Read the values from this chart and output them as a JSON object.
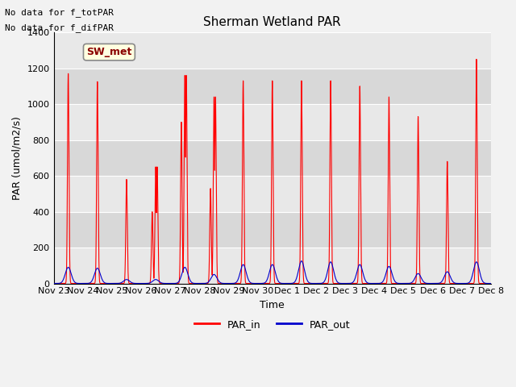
{
  "title": "Sherman Wetland PAR",
  "ylabel": "PAR (umol/m2/s)",
  "xlabel": "Time",
  "annotation_lines": [
    "No data for f_totPAR",
    "No data for f_difPAR"
  ],
  "legend_label": "SW_met",
  "ylim": [
    0,
    1400
  ],
  "background_color": "#e8e8e8",
  "band_color_light": "#e8e8e8",
  "band_color_dark": "#d8d8d8",
  "grid_color": "#ffffff",
  "par_in_color": "#ff0000",
  "par_out_color": "#0000cc",
  "tick_labels": [
    "Nov 23",
    "Nov 24",
    "Nov 25",
    "Nov 26",
    "Nov 27",
    "Nov 28",
    "Nov 29",
    "Nov 30",
    "Dec 1",
    "Dec 2",
    "Dec 3",
    "Dec 4",
    "Dec 5",
    "Dec 6",
    "Dec 7",
    "Dec 8"
  ],
  "day_peaks_in": [
    1170,
    1125,
    580,
    650,
    1160,
    1040,
    1130,
    1130,
    1130,
    1130,
    1100,
    1040,
    930,
    680,
    1250
  ],
  "day_peaks_out": [
    90,
    85,
    22,
    22,
    90,
    50,
    105,
    105,
    125,
    120,
    105,
    95,
    55,
    65,
    120
  ],
  "day_secondary_peaks_in": [
    0,
    0,
    0,
    400,
    900,
    530,
    0,
    0,
    0,
    0,
    0,
    0,
    0,
    0,
    0
  ],
  "fig_bg": "#f2f2f2",
  "title_fontsize": 11,
  "label_fontsize": 9,
  "tick_fontsize": 8
}
